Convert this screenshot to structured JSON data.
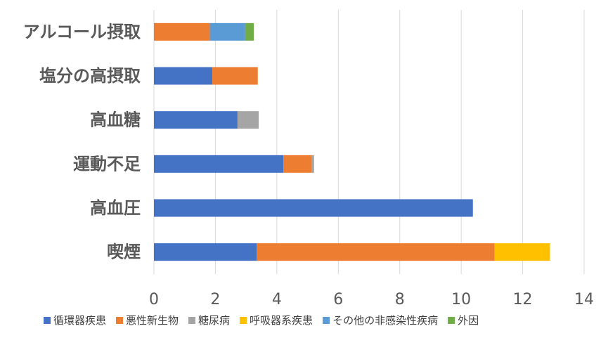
{
  "chart_data": {
    "type": "bar",
    "orientation": "horizontal",
    "stacked": true,
    "title": "",
    "xlabel": "",
    "ylabel": "",
    "xlim": [
      0,
      14
    ],
    "x_ticks": [
      0,
      2,
      4,
      6,
      8,
      10,
      12,
      14
    ],
    "grid": true,
    "legend_position": "bottom",
    "categories": [
      "アルコール摂取",
      "塩分の高摂取",
      "高血糖",
      "運動不足",
      "高血圧",
      "喫煙"
    ],
    "series": [
      {
        "name": "循環器疾患",
        "color": "#4472C4",
        "values": [
          0,
          1.9,
          2.72,
          4.21,
          10.38,
          3.34
        ]
      },
      {
        "name": "悪性新生物",
        "color": "#ED7D31",
        "values": [
          1.82,
          1.48,
          0,
          0.93,
          0,
          7.75
        ]
      },
      {
        "name": "糖尿病",
        "color": "#A5A5A5",
        "values": [
          0,
          0,
          0.69,
          0.07,
          0,
          0
        ]
      },
      {
        "name": "呼吸器系疾患",
        "color": "#FFC000",
        "values": [
          0,
          0,
          0,
          0,
          0,
          1.8
        ]
      },
      {
        "name": "その他の非感染性疾病",
        "color": "#5B9BD5",
        "values": [
          1.15,
          0,
          0,
          0,
          0,
          0
        ]
      },
      {
        "name": "外因",
        "color": "#70AD47",
        "values": [
          0.28,
          0,
          0,
          0,
          0,
          0
        ]
      }
    ]
  }
}
